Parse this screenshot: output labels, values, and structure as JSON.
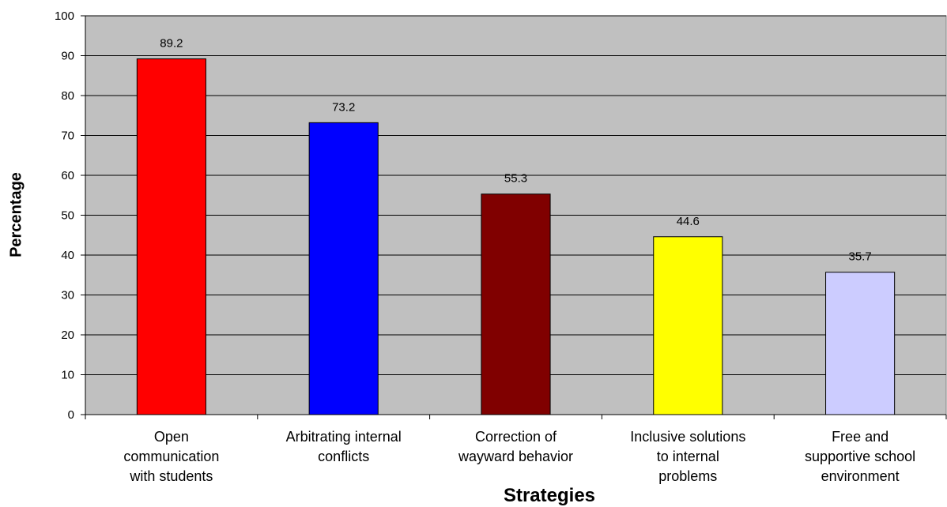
{
  "chart_data": {
    "type": "bar",
    "categories": [
      "Open communication with students",
      "Arbitrating internal conflicts",
      "Correction of wayward behavior",
      "Inclusive solutions to internal problems",
      "Free and supportive school environment"
    ],
    "category_lines": [
      [
        "Open",
        "communication",
        "with students"
      ],
      [
        "Arbitrating internal",
        "conflicts"
      ],
      [
        "Correction of",
        "wayward behavior"
      ],
      [
        "Inclusive solutions",
        "to internal",
        "problems"
      ],
      [
        "Free and",
        "supportive school",
        "environment"
      ]
    ],
    "values": [
      89.2,
      73.2,
      55.3,
      44.6,
      35.7
    ],
    "data_labels": [
      "89.2",
      "73.2",
      "55.3",
      "44.6",
      "35.7"
    ],
    "bar_colors": [
      "#ff0000",
      "#0000ff",
      "#800000",
      "#ffff00",
      "#ccccff"
    ],
    "plot_background": "#c0c0c0",
    "title": "",
    "xlabel": "Strategies",
    "ylabel": "Percentage",
    "ylim": [
      0,
      100
    ],
    "yticks": [
      0,
      10,
      20,
      30,
      40,
      50,
      60,
      70,
      80,
      90,
      100
    ],
    "grid": true,
    "legend": false
  }
}
